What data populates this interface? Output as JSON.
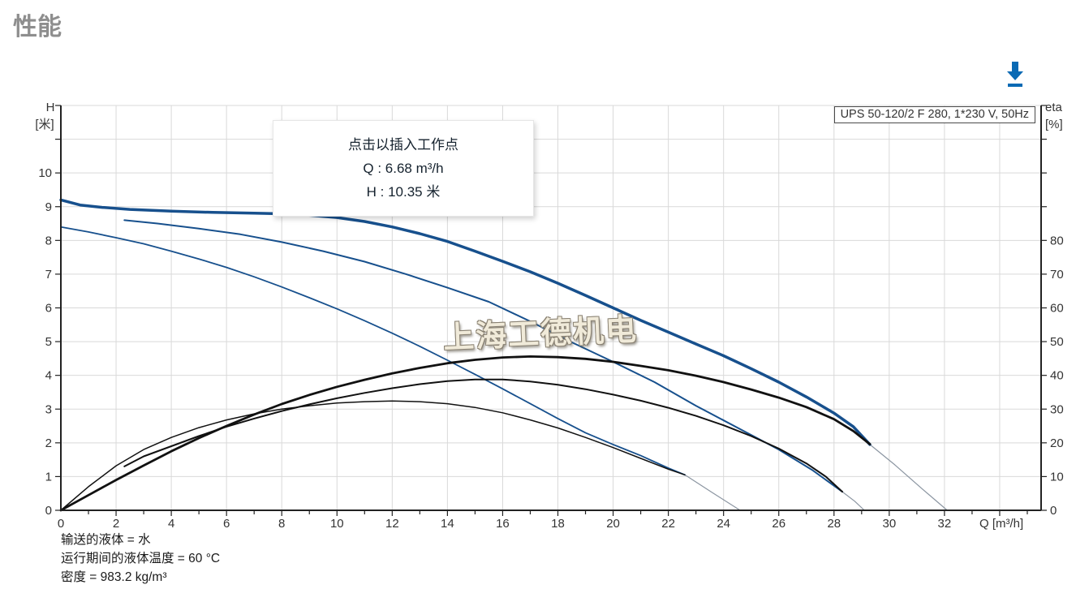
{
  "page": {
    "title": "性能"
  },
  "toolbar": {
    "download_tooltip": "下载"
  },
  "tooltip": {
    "line1": "点击以插入工作点",
    "line2": "Q : 6.68 m³/h",
    "line3": "H : 10.35 米"
  },
  "pump_label": "UPS 50-120/2 F 280, 1*230 V, 50Hz",
  "watermark": "上海工德机电",
  "footer": {
    "line1": "输送的液体 = 水",
    "line2": "运行期间的液体温度 = 60 °C",
    "line3": "密度 = 983.2 kg/m³"
  },
  "colors": {
    "head_curve": "#17508d",
    "eta_curve": "#111111",
    "extension": "#8b95a1",
    "grid": "#d9d9d9",
    "axis": "#222222",
    "tick_text": "#333333",
    "accent_blue": "#0a6ab4"
  },
  "chart_data": {
    "type": "line",
    "title": "UPS 50-120/2 F 280, 1*230 V, 50Hz",
    "operating_point": {
      "Q_m3h": 6.68,
      "H_m": 10.35
    },
    "x_axis": {
      "label": "Q [m³/h]",
      "min": 0,
      "max": 35.5,
      "minor_tick_step": 1,
      "grid_step": 2,
      "tick_labels": [
        0,
        2,
        4,
        6,
        8,
        10,
        12,
        14,
        16,
        18,
        20,
        22,
        24,
        26,
        28,
        30,
        32
      ]
    },
    "y_left": {
      "label_top": "H",
      "label_unit": "[米]",
      "min": 0,
      "max": 12,
      "tick_step": 1,
      "tick_labels": [
        0,
        1,
        2,
        3,
        4,
        5,
        6,
        7,
        8,
        9,
        10
      ]
    },
    "y_right": {
      "label_top": "eta",
      "label_unit": "[%]",
      "min": 0,
      "max": 120,
      "tick_step": 10,
      "tick_labels": [
        0,
        10,
        20,
        30,
        40,
        50,
        60,
        70,
        80
      ]
    },
    "grid": true,
    "series": [
      {
        "name": "head-speed3",
        "axis": "left",
        "role": "head",
        "width": 3.5,
        "points": [
          [
            0,
            9.2
          ],
          [
            0.7,
            9.05
          ],
          [
            1.5,
            8.98
          ],
          [
            2.5,
            8.92
          ],
          [
            4,
            8.87
          ],
          [
            5.5,
            8.83
          ],
          [
            7,
            8.81
          ],
          [
            8.5,
            8.78
          ],
          [
            10,
            8.68
          ],
          [
            11,
            8.56
          ],
          [
            12,
            8.4
          ],
          [
            13,
            8.2
          ],
          [
            14,
            7.97
          ],
          [
            15,
            7.68
          ],
          [
            16,
            7.38
          ],
          [
            17,
            7.07
          ],
          [
            18,
            6.73
          ],
          [
            19,
            6.37
          ],
          [
            20,
            6.0
          ],
          [
            21,
            5.63
          ],
          [
            22,
            5.28
          ],
          [
            23,
            4.93
          ],
          [
            24,
            4.58
          ],
          [
            25,
            4.2
          ],
          [
            26,
            3.8
          ],
          [
            27,
            3.36
          ],
          [
            28,
            2.88
          ],
          [
            28.7,
            2.48
          ],
          [
            29.3,
            1.95
          ]
        ]
      },
      {
        "name": "head-speed2",
        "axis": "left",
        "role": "head",
        "width": 2,
        "points": [
          [
            2.3,
            8.6
          ],
          [
            3.5,
            8.5
          ],
          [
            5,
            8.35
          ],
          [
            6.5,
            8.18
          ],
          [
            8,
            7.95
          ],
          [
            9.5,
            7.68
          ],
          [
            11,
            7.37
          ],
          [
            12.5,
            7.0
          ],
          [
            14,
            6.6
          ],
          [
            15.5,
            6.18
          ],
          [
            17,
            5.6
          ],
          [
            18.5,
            4.98
          ],
          [
            20,
            4.4
          ],
          [
            21.5,
            3.8
          ],
          [
            23,
            3.1
          ],
          [
            24.5,
            2.45
          ],
          [
            26,
            1.8
          ],
          [
            27.2,
            1.2
          ],
          [
            28.3,
            0.55
          ]
        ]
      },
      {
        "name": "head-speed1",
        "axis": "left",
        "role": "head",
        "width": 1.8,
        "points": [
          [
            0,
            8.4
          ],
          [
            1,
            8.25
          ],
          [
            2,
            8.08
          ],
          [
            3,
            7.9
          ],
          [
            4,
            7.68
          ],
          [
            5,
            7.45
          ],
          [
            6,
            7.2
          ],
          [
            7,
            6.92
          ],
          [
            8,
            6.62
          ],
          [
            9,
            6.3
          ],
          [
            10,
            5.97
          ],
          [
            11,
            5.62
          ],
          [
            12,
            5.25
          ],
          [
            13,
            4.86
          ],
          [
            14,
            4.45
          ],
          [
            15,
            4.03
          ],
          [
            16,
            3.6
          ],
          [
            17,
            3.16
          ],
          [
            18,
            2.72
          ],
          [
            19,
            2.3
          ],
          [
            20,
            1.95
          ],
          [
            21,
            1.62
          ],
          [
            22,
            1.25
          ],
          [
            22.6,
            1.05
          ]
        ]
      },
      {
        "name": "eta-speed3",
        "axis": "right",
        "role": "eta",
        "width": 2.8,
        "points": [
          [
            0,
            0
          ],
          [
            1,
            4.5
          ],
          [
            2,
            9
          ],
          [
            3,
            13.3
          ],
          [
            4,
            17.5
          ],
          [
            5,
            21.4
          ],
          [
            6,
            25
          ],
          [
            7,
            28.4
          ],
          [
            8,
            31.5
          ],
          [
            9,
            34.2
          ],
          [
            10,
            36.6
          ],
          [
            11,
            38.7
          ],
          [
            12,
            40.6
          ],
          [
            13,
            42.2
          ],
          [
            14,
            43.6
          ],
          [
            15,
            44.6
          ],
          [
            16,
            45.3
          ],
          [
            17,
            45.6
          ],
          [
            18,
            45.4
          ],
          [
            19,
            44.9
          ],
          [
            20,
            44
          ],
          [
            21,
            42.8
          ],
          [
            22,
            41.5
          ],
          [
            23,
            39.9
          ],
          [
            24,
            38
          ],
          [
            25,
            35.8
          ],
          [
            26,
            33.4
          ],
          [
            27,
            30.6
          ],
          [
            28,
            27
          ],
          [
            28.7,
            23.5
          ],
          [
            29.3,
            19.6
          ]
        ]
      },
      {
        "name": "eta-speed2",
        "axis": "right",
        "role": "eta",
        "width": 2,
        "points": [
          [
            2.3,
            13
          ],
          [
            3,
            16
          ],
          [
            4,
            19
          ],
          [
            5,
            22
          ],
          [
            6,
            24.8
          ],
          [
            7,
            27.2
          ],
          [
            8,
            29.4
          ],
          [
            9,
            31.4
          ],
          [
            10,
            33.2
          ],
          [
            11,
            34.8
          ],
          [
            12,
            36.2
          ],
          [
            13,
            37.4
          ],
          [
            14,
            38.3
          ],
          [
            15,
            38.8
          ],
          [
            16,
            38.8
          ],
          [
            17,
            38.2
          ],
          [
            18,
            37.2
          ],
          [
            19,
            35.9
          ],
          [
            20,
            34.3
          ],
          [
            21,
            32.5
          ],
          [
            22,
            30.4
          ],
          [
            23,
            28
          ],
          [
            24,
            25.2
          ],
          [
            25,
            22
          ],
          [
            26,
            18.3
          ],
          [
            27,
            13.9
          ],
          [
            27.7,
            10
          ],
          [
            28.3,
            5.5
          ]
        ]
      },
      {
        "name": "eta-speed1",
        "axis": "right",
        "role": "eta",
        "width": 1.5,
        "points": [
          [
            0,
            0
          ],
          [
            1,
            7
          ],
          [
            2,
            13.2
          ],
          [
            3,
            18
          ],
          [
            4,
            21.6
          ],
          [
            5,
            24.5
          ],
          [
            6,
            26.8
          ],
          [
            7,
            28.6
          ],
          [
            8,
            30
          ],
          [
            9,
            31
          ],
          [
            10,
            31.8
          ],
          [
            11,
            32.2
          ],
          [
            12,
            32.4
          ],
          [
            13,
            32.2
          ],
          [
            14,
            31.6
          ],
          [
            15,
            30.5
          ],
          [
            16,
            28.9
          ],
          [
            17,
            26.8
          ],
          [
            18,
            24.4
          ],
          [
            19,
            21.6
          ],
          [
            20,
            18.6
          ],
          [
            21,
            15.4
          ],
          [
            22,
            12.2
          ],
          [
            22.6,
            10.5
          ]
        ]
      },
      {
        "name": "head-speed1-extension",
        "axis": "left",
        "role": "extension",
        "width": 1.2,
        "points": [
          [
            22.6,
            1.05
          ],
          [
            23.6,
            0.52
          ],
          [
            24.6,
            0
          ]
        ]
      },
      {
        "name": "head-speed2-extension",
        "axis": "left",
        "role": "extension",
        "width": 1.2,
        "points": [
          [
            28.3,
            0.55
          ],
          [
            28.75,
            0.27
          ],
          [
            29.1,
            0
          ]
        ]
      },
      {
        "name": "head-speed3-extension",
        "axis": "left",
        "role": "extension",
        "width": 1.2,
        "points": [
          [
            29.3,
            1.95
          ],
          [
            30.2,
            1.35
          ],
          [
            31.2,
            0.63
          ],
          [
            32.1,
            0
          ]
        ]
      }
    ]
  }
}
